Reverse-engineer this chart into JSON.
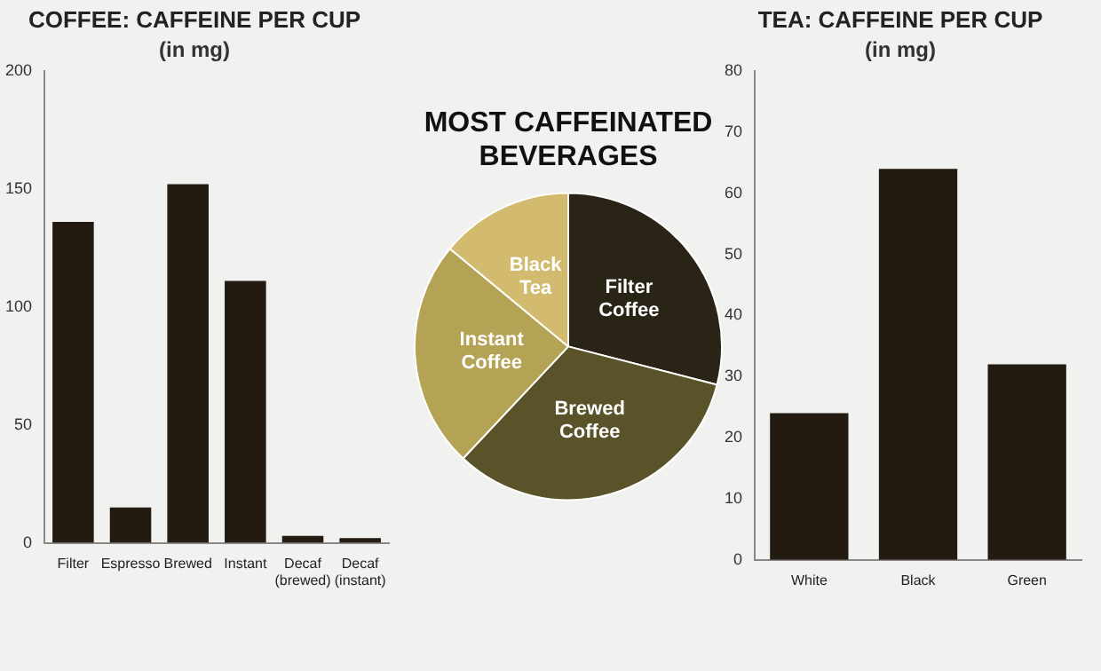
{
  "chart_data": [
    {
      "type": "bar",
      "title": "COFFEE: CAFFEINE PER CUP",
      "subtitle": "(in mg)",
      "categories": [
        "Filter",
        "Espresso",
        "Brewed",
        "Instant",
        "Decaf (brewed)",
        "Decaf (instant)"
      ],
      "values": [
        136,
        15,
        152,
        111,
        3,
        2
      ],
      "color": "#231a12",
      "ylim": [
        0,
        200
      ],
      "yticks": [
        0,
        50,
        100,
        150,
        200
      ],
      "grid": false,
      "legend": false
    },
    {
      "type": "pie",
      "title": "MOST CAFFEINATED BEVERAGES",
      "categories": [
        "Filter Coffee",
        "Brewed Coffee",
        "Instant Coffee",
        "Black Tea"
      ],
      "values": [
        29,
        33,
        24,
        14
      ],
      "colors": [
        "#2a2416",
        "#5a5228",
        "#b5a355",
        "#d2bb6e"
      ],
      "legend": false
    },
    {
      "type": "bar",
      "title": "TEA: CAFFEINE PER CUP",
      "subtitle": "(in mg)",
      "categories": [
        "White",
        "Black",
        "Green"
      ],
      "values": [
        24,
        64,
        32
      ],
      "color": "#231a12",
      "ylim": [
        0,
        80
      ],
      "yticks": [
        0,
        10,
        20,
        30,
        40,
        50,
        60,
        70,
        80
      ],
      "grid": false,
      "legend": false
    }
  ]
}
